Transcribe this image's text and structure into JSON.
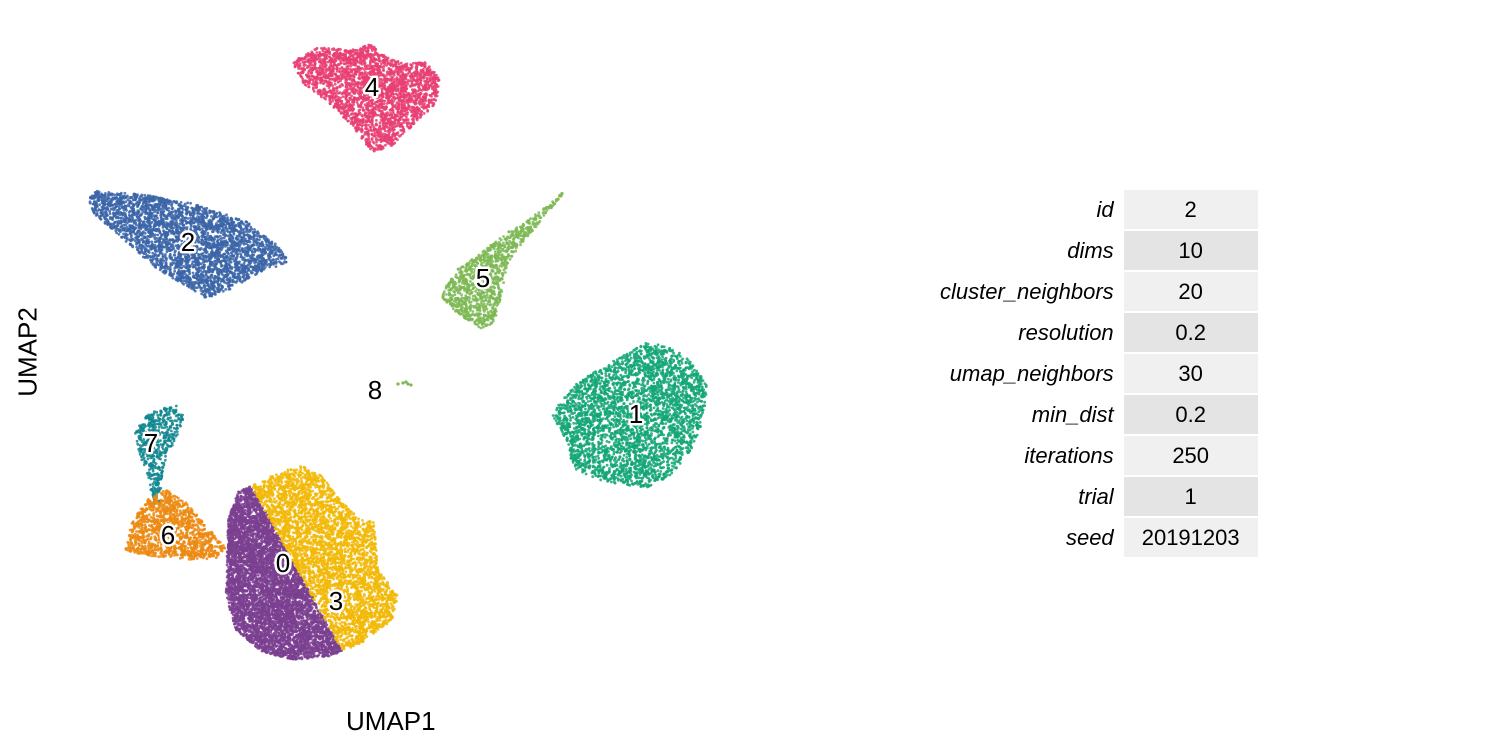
{
  "chart_data": {
    "type": "scatter",
    "xlabel": "UMAP1",
    "ylabel": "UMAP2",
    "grid": false,
    "legend": "none",
    "clusters": [
      {
        "label": "0",
        "color": "#7b3f91"
      },
      {
        "label": "1",
        "color": "#13a676"
      },
      {
        "label": "2",
        "color": "#3b65a8"
      },
      {
        "label": "3",
        "color": "#f2b807"
      },
      {
        "label": "4",
        "color": "#e83e73"
      },
      {
        "label": "5",
        "color": "#7db954"
      },
      {
        "label": "6",
        "color": "#ec8a12"
      },
      {
        "label": "7",
        "color": "#10868f"
      },
      {
        "label": "8",
        "color": "#7db954"
      }
    ]
  },
  "params": [
    {
      "key": "id",
      "value": "2"
    },
    {
      "key": "dims",
      "value": "10"
    },
    {
      "key": "cluster_neighbors",
      "value": "20"
    },
    {
      "key": "resolution",
      "value": "0.2"
    },
    {
      "key": "umap_neighbors",
      "value": "30"
    },
    {
      "key": "min_dist",
      "value": "0.2"
    },
    {
      "key": "iterations",
      "value": "250"
    },
    {
      "key": "trial",
      "value": "1"
    },
    {
      "key": "seed",
      "value": "20191203"
    }
  ]
}
